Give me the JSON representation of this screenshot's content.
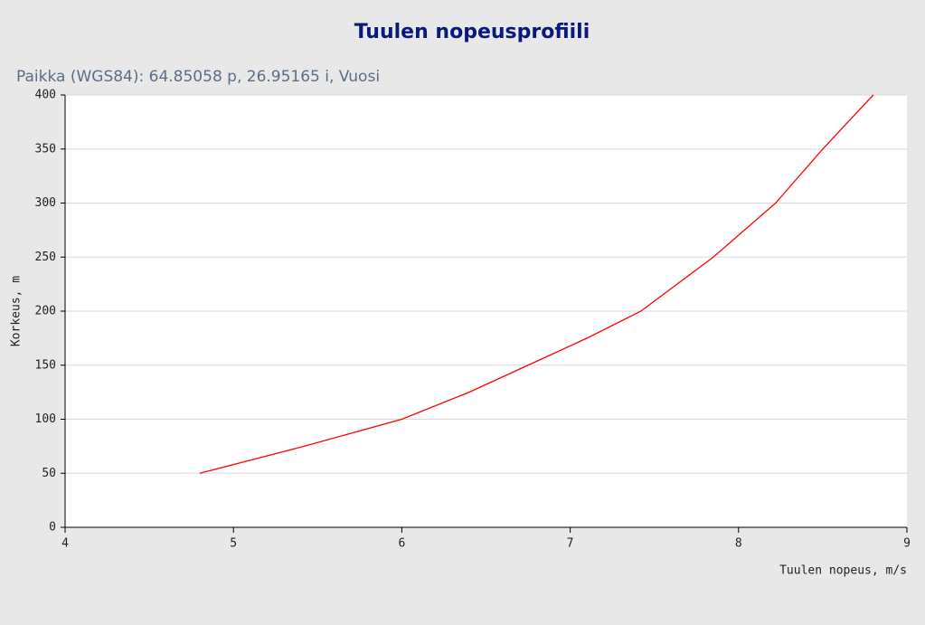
{
  "chart_data": {
    "type": "line",
    "title": "Tuulen nopeusprofiili",
    "subtitle": "Paikka (WGS84): 64.85058 p, 26.95165 i, Vuosi",
    "x_label": "Tuulen nopeus, m/s",
    "y_label": "Korkeus, m",
    "x": [
      4.8,
      5.42,
      6.0,
      6.4,
      6.75,
      7.1,
      7.42,
      7.85,
      8.22,
      8.5,
      8.8
    ],
    "series": [
      {
        "name": "Korkeus",
        "color": "#ff0000",
        "values": [
          50,
          75,
          100,
          125,
          150,
          175,
          200,
          250,
          300,
          350,
          400
        ]
      }
    ],
    "xlim": [
      4,
      9
    ],
    "xticks": [
      4,
      5,
      6,
      7,
      8,
      9
    ],
    "ylim": [
      0,
      400
    ],
    "yticks": [
      0,
      50,
      100,
      150,
      200,
      250,
      300,
      350,
      400
    ],
    "grid": true
  }
}
